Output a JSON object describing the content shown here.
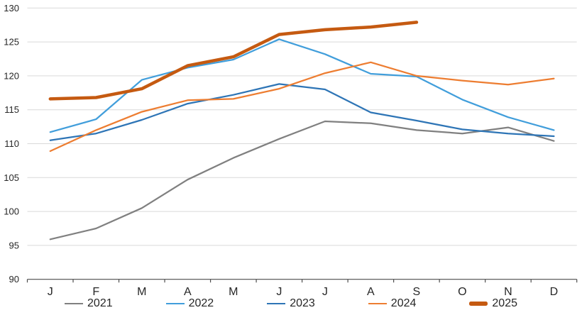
{
  "chart_data": {
    "type": "line",
    "title": "",
    "categories": [
      "J",
      "F",
      "M",
      "A",
      "M",
      "J",
      "J",
      "A",
      "S",
      "O",
      "N",
      "D"
    ],
    "y_axis": {
      "min": 90,
      "max": 130,
      "ticks": [
        90,
        95,
        100,
        105,
        110,
        115,
        120,
        125,
        130
      ]
    },
    "grid": "horizontal-only",
    "legend_position": "bottom",
    "axis_color": "#4d4d4d",
    "gridline_color": "#d9d9d9",
    "label_color": "#262626",
    "series": [
      {
        "name": "2021",
        "color": "#808080",
        "thickness": "normal",
        "values": [
          95.9,
          97.5,
          100.5,
          104.7,
          107.9,
          110.7,
          113.3,
          113.0,
          112.0,
          111.5,
          112.4,
          110.4
        ]
      },
      {
        "name": "2022",
        "color": "#419edb",
        "thickness": "normal",
        "values": [
          111.7,
          113.6,
          119.4,
          121.2,
          122.4,
          125.4,
          123.2,
          120.3,
          119.9,
          116.5,
          113.9,
          112.0
        ]
      },
      {
        "name": "2023",
        "color": "#2e75b6",
        "thickness": "normal",
        "values": [
          110.5,
          111.5,
          113.5,
          115.9,
          117.2,
          118.8,
          118.0,
          114.6,
          113.4,
          112.1,
          111.5,
          111.1
        ]
      },
      {
        "name": "2024",
        "color": "#ed7d31",
        "thickness": "normal",
        "values": [
          108.9,
          112.0,
          114.7,
          116.4,
          116.6,
          118.1,
          120.4,
          122.0,
          120.0,
          119.3,
          118.7,
          119.6
        ]
      },
      {
        "name": "2025",
        "color": "#c55a11",
        "thickness": "thick",
        "values": [
          116.6,
          116.8,
          118.1,
          121.5,
          122.8,
          126.1,
          126.8,
          127.2,
          127.9,
          null,
          null,
          null
        ]
      }
    ]
  }
}
